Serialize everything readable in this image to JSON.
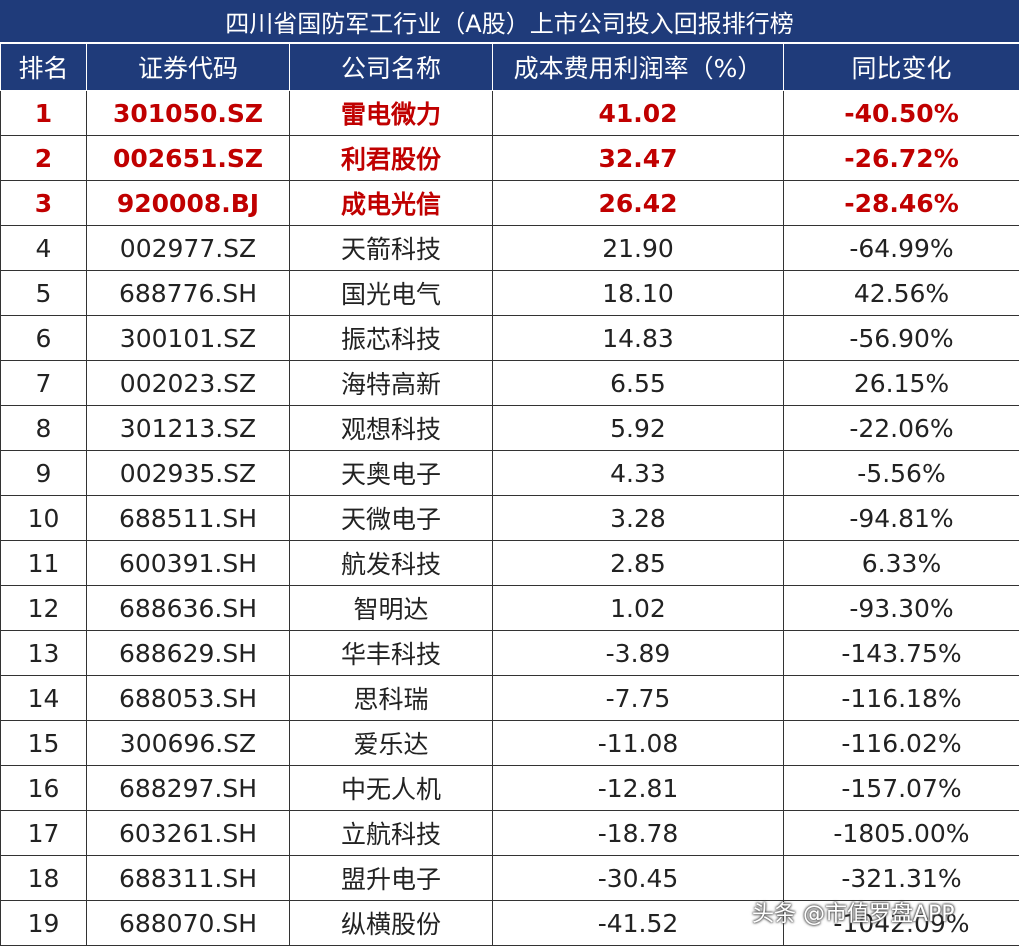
{
  "title": "四川省国防军工行业（A股）上市公司投入回报排行榜",
  "headers": [
    "排名",
    "证券代码",
    "公司名称",
    "成本费用利润率（%）",
    "同比变化"
  ],
  "rows": [
    {
      "rank": "1",
      "code": "301050.SZ",
      "name": "雷电微力",
      "rate": "41.02",
      "change": "-40.50%",
      "top": true
    },
    {
      "rank": "2",
      "code": "002651.SZ",
      "name": "利君股份",
      "rate": "32.47",
      "change": "-26.72%",
      "top": true
    },
    {
      "rank": "3",
      "code": "920008.BJ",
      "name": "成电光信",
      "rate": "26.42",
      "change": "-28.46%",
      "top": true
    },
    {
      "rank": "4",
      "code": "002977.SZ",
      "name": "天箭科技",
      "rate": "21.90",
      "change": "-64.99%",
      "top": false
    },
    {
      "rank": "5",
      "code": "688776.SH",
      "name": "国光电气",
      "rate": "18.10",
      "change": "42.56%",
      "top": false
    },
    {
      "rank": "6",
      "code": "300101.SZ",
      "name": "振芯科技",
      "rate": "14.83",
      "change": "-56.90%",
      "top": false
    },
    {
      "rank": "7",
      "code": "002023.SZ",
      "name": "海特高新",
      "rate": "6.55",
      "change": "26.15%",
      "top": false
    },
    {
      "rank": "8",
      "code": "301213.SZ",
      "name": "观想科技",
      "rate": "5.92",
      "change": "-22.06%",
      "top": false
    },
    {
      "rank": "9",
      "code": "002935.SZ",
      "name": "天奥电子",
      "rate": "4.33",
      "change": "-5.56%",
      "top": false
    },
    {
      "rank": "10",
      "code": "688511.SH",
      "name": "天微电子",
      "rate": "3.28",
      "change": "-94.81%",
      "top": false
    },
    {
      "rank": "11",
      "code": "600391.SH",
      "name": "航发科技",
      "rate": "2.85",
      "change": "6.33%",
      "top": false
    },
    {
      "rank": "12",
      "code": "688636.SH",
      "name": "智明达",
      "rate": "1.02",
      "change": "-93.30%",
      "top": false
    },
    {
      "rank": "13",
      "code": "688629.SH",
      "name": "华丰科技",
      "rate": "-3.89",
      "change": "-143.75%",
      "top": false
    },
    {
      "rank": "14",
      "code": "688053.SH",
      "name": "思科瑞",
      "rate": "-7.75",
      "change": "-116.18%",
      "top": false
    },
    {
      "rank": "15",
      "code": "300696.SZ",
      "name": "爱乐达",
      "rate": "-11.08",
      "change": "-116.02%",
      "top": false
    },
    {
      "rank": "16",
      "code": "688297.SH",
      "name": "中无人机",
      "rate": "-12.81",
      "change": "-157.07%",
      "top": false
    },
    {
      "rank": "17",
      "code": "603261.SH",
      "name": "立航科技",
      "rate": "-18.78",
      "change": "-1805.00%",
      "top": false
    },
    {
      "rank": "18",
      "code": "688311.SH",
      "name": "盟升电子",
      "rate": "-30.45",
      "change": "-321.31%",
      "top": false
    },
    {
      "rank": "19",
      "code": "688070.SH",
      "name": "纵横股份",
      "rate": "-41.52",
      "change": "-1042.09%",
      "top": false
    }
  ],
  "watermark": "头条 @市值罗盘APP",
  "colors": {
    "header_bg": "#1f3b7a",
    "highlight": "#c00000"
  }
}
